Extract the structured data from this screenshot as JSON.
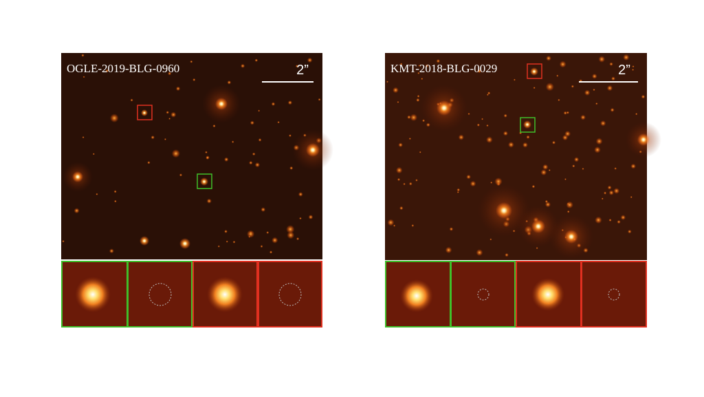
{
  "panels": [
    {
      "label": "OGLE-2019-BLG-0960",
      "scale_bar": "2”"
    },
    {
      "label": "KMT-2018-BLG-0029",
      "scale_bar": "2”"
    }
  ]
}
